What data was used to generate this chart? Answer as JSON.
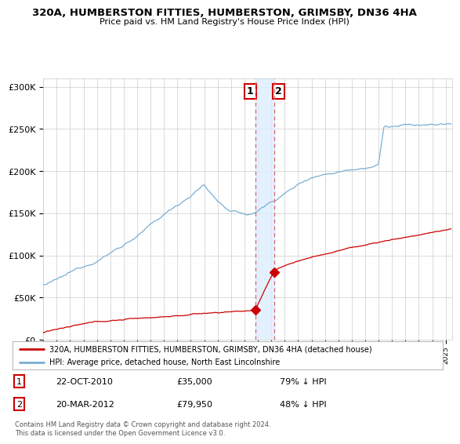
{
  "title": "320A, HUMBERSTON FITTIES, HUMBERSTON, GRIMSBY, DN36 4HA",
  "subtitle": "Price paid vs. HM Land Registry's House Price Index (HPI)",
  "legend_line1": "320A, HUMBERSTON FITTIES, HUMBERSTON, GRIMSBY, DN36 4HA (detached house)",
  "legend_line2": "HPI: Average price, detached house, North East Lincolnshire",
  "transaction1_date": "22-OCT-2010",
  "transaction1_price": "£35,000",
  "transaction1_hpi": "79% ↓ HPI",
  "transaction2_date": "20-MAR-2012",
  "transaction2_price": "£79,950",
  "transaction2_hpi": "48% ↓ HPI",
  "footer": "Contains HM Land Registry data © Crown copyright and database right 2024.\nThis data is licensed under the Open Government Licence v3.0.",
  "hpi_color": "#7aaed4",
  "price_color": "#cc0000",
  "marker_color": "#cc0000",
  "vline_color": "#dd6666",
  "shade_color": "#ddeeff",
  "grid_color": "#cccccc",
  "bg_color": "#ffffff",
  "ylim": [
    0,
    310000
  ],
  "t1_x": 2010.8,
  "t1_y": 35000,
  "t2_x": 2012.2,
  "t2_y": 79950,
  "xmin": 1995.0,
  "xmax": 2025.5
}
